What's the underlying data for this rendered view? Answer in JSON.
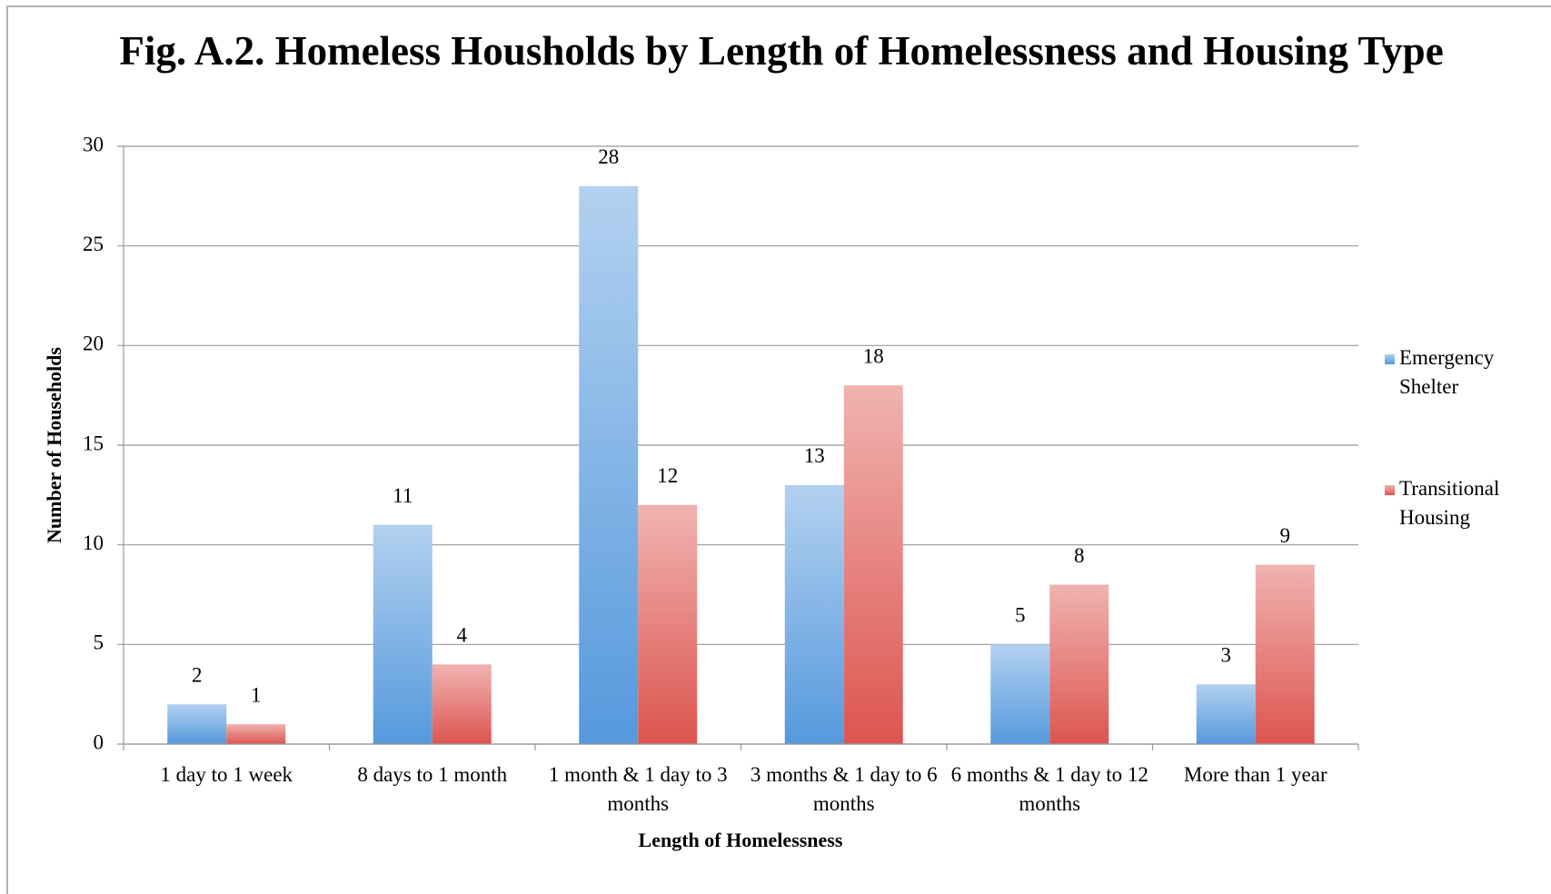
{
  "chart_data": {
    "type": "bar",
    "title": "Fig. A.2. Homeless Housholds by Length of Homelessness and Housing Type",
    "x_label": "Length of Homelessness",
    "y_label": "Number of Households",
    "categories": [
      "1 day to 1 week",
      "8 days to 1 month",
      "1 month & 1 day to 3 months",
      "3 months & 1 day to 6 months",
      "6 months & 1 day to 12 months",
      "More than 1 year"
    ],
    "series": [
      {
        "name": "Emergency Shelter",
        "color": "#5599dd",
        "values": [
          2,
          11,
          28,
          13,
          5,
          3
        ]
      },
      {
        "name": "Transitional Housing",
        "color": "#dd5550",
        "values": [
          1,
          4,
          12,
          18,
          8,
          9
        ]
      }
    ],
    "ylim": [
      0,
      30
    ],
    "yticks": [
      0,
      5,
      10,
      15,
      20,
      25,
      30
    ],
    "grid": true,
    "legend": "right"
  }
}
